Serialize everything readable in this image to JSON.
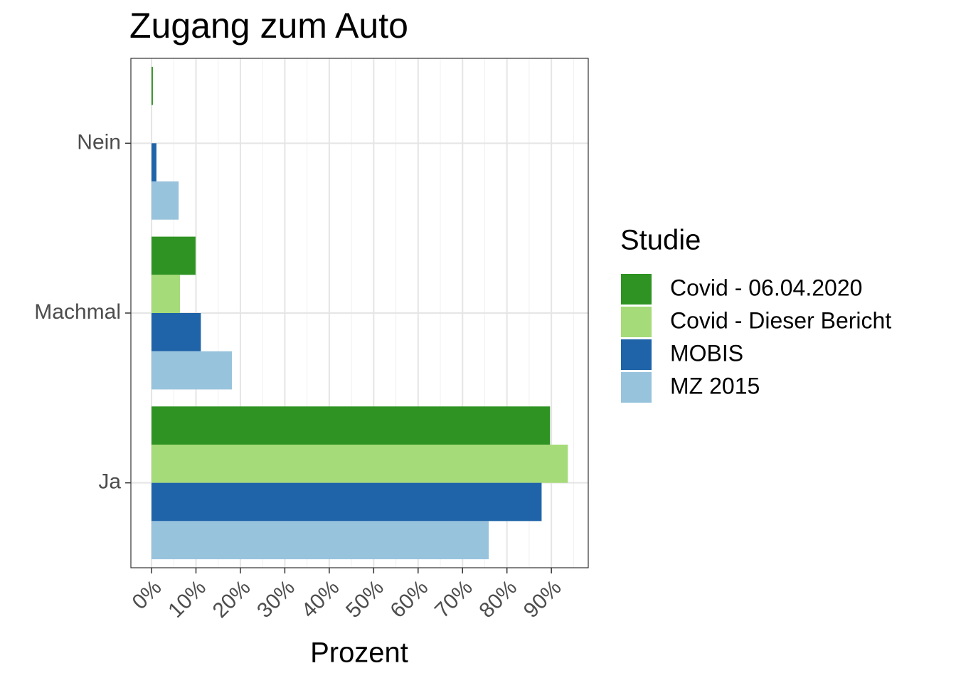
{
  "chart_data": {
    "type": "bar",
    "orientation": "horizontal",
    "title": "Zugang zum Auto",
    "x_label": "Prozent",
    "legend_title": "Studie",
    "categories": [
      "Nein",
      "Machmal",
      "Ja"
    ],
    "series": [
      {
        "name": "Covid - 06.04.2020",
        "color": "#2e9322",
        "values": [
          0.3,
          9.9,
          89.7
        ]
      },
      {
        "name": "Covid - Dieser Bericht",
        "color": "#a5db78",
        "values": [
          null,
          6.4,
          93.7
        ]
      },
      {
        "name": "MOBIS",
        "color": "#1f63a8",
        "values": [
          1.1,
          11.1,
          87.8
        ]
      },
      {
        "name": "MZ 2015",
        "color": "#98c3dd",
        "values": [
          6.1,
          18.1,
          75.9
        ]
      }
    ],
    "xlim": [
      -4.65,
      98.3
    ],
    "xticks": [
      {
        "value": 0,
        "label": "0%"
      },
      {
        "value": 10,
        "label": "10%"
      },
      {
        "value": 20,
        "label": "20%"
      },
      {
        "value": 30,
        "label": "30%"
      },
      {
        "value": 40,
        "label": "40%"
      },
      {
        "value": 50,
        "label": "50%"
      },
      {
        "value": 60,
        "label": "60%"
      },
      {
        "value": 70,
        "label": "70%"
      },
      {
        "value": 80,
        "label": "80%"
      },
      {
        "value": 90,
        "label": "90%"
      }
    ],
    "grid": true,
    "minor_grid": true,
    "legend_position": "right"
  }
}
